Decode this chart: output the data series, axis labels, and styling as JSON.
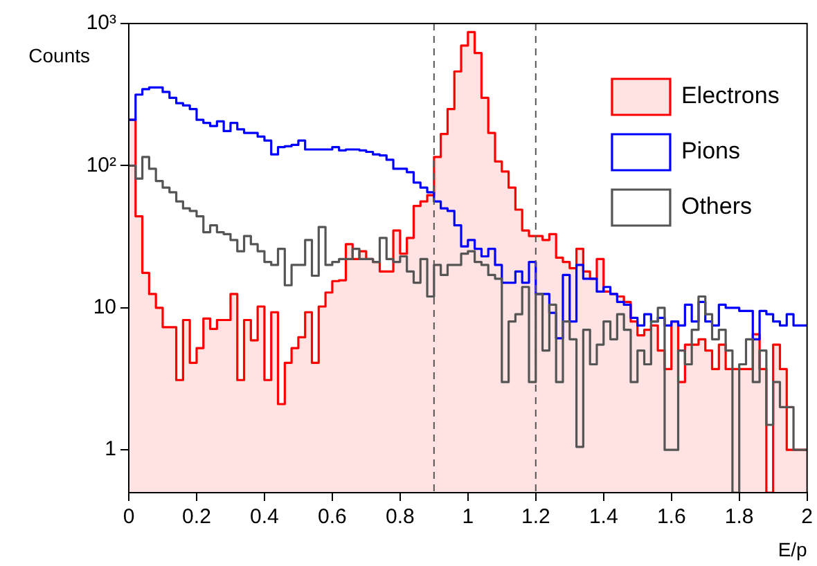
{
  "chart_data": {
    "type": "histogram",
    "xlabel": "E/p",
    "ylabel": "Counts",
    "bins": [
      0,
      0.02,
      0.04,
      0.06,
      0.08,
      0.1,
      0.12,
      0.14,
      0.16,
      0.18,
      0.2,
      0.22,
      0.24,
      0.26,
      0.28,
      0.3,
      0.32,
      0.34,
      0.36,
      0.38,
      0.4,
      0.42,
      0.44,
      0.46,
      0.48,
      0.5,
      0.52,
      0.54,
      0.56,
      0.58,
      0.6,
      0.62,
      0.64,
      0.66,
      0.68,
      0.7,
      0.72,
      0.74,
      0.76,
      0.78,
      0.8,
      0.82,
      0.84,
      0.86,
      0.88,
      0.9,
      0.92,
      0.94,
      0.96,
      0.98,
      1,
      1.02,
      1.04,
      1.06,
      1.08,
      1.1,
      1.12,
      1.14,
      1.16,
      1.18,
      1.2,
      1.22,
      1.24,
      1.26,
      1.28,
      1.3,
      1.32,
      1.34,
      1.36,
      1.38,
      1.4,
      1.42,
      1.44,
      1.46,
      1.48,
      1.5,
      1.52,
      1.54,
      1.56,
      1.58,
      1.6,
      1.62,
      1.64,
      1.66,
      1.68,
      1.7,
      1.72,
      1.74,
      1.76,
      1.78,
      1.8,
      1.82,
      1.84,
      1.86,
      1.88,
      1.9,
      1.92,
      1.94,
      1.96,
      1.98,
      2
    ],
    "series": [
      {
        "name": "Electrons",
        "type": "area",
        "color": "#ff0000",
        "x": [
          0.01,
          0.03,
          0.05,
          0.07,
          0.09,
          0.11,
          0.13,
          0.15,
          0.17,
          0.19,
          0.21,
          0.23,
          0.25,
          0.27,
          0.29,
          0.31,
          0.33,
          0.35,
          0.37,
          0.39,
          0.41,
          0.43,
          0.45,
          0.47,
          0.49,
          0.51,
          0.53,
          0.55,
          0.57,
          0.59,
          0.61,
          0.63,
          0.65,
          0.67,
          0.69,
          0.71,
          0.73,
          0.75,
          0.77,
          0.79,
          0.81,
          0.83,
          0.85,
          0.87,
          0.89,
          0.91,
          0.93,
          0.95,
          0.97,
          0.99,
          1.01,
          1.03,
          1.05,
          1.07,
          1.09,
          1.11,
          1.13,
          1.15,
          1.17,
          1.19,
          1.21,
          1.23,
          1.25,
          1.27,
          1.29,
          1.31,
          1.33,
          1.35,
          1.37,
          1.39,
          1.41,
          1.43,
          1.45,
          1.47,
          1.49,
          1.51,
          1.53,
          1.55,
          1.57,
          1.59,
          1.61,
          1.63,
          1.65,
          1.67,
          1.69,
          1.71,
          1.73,
          1.75,
          1.77,
          1.79,
          1.81,
          1.83,
          1.85,
          1.87,
          1.89,
          1.91,
          1.93,
          1.95,
          1.97,
          1.99
        ],
        "values": [
          210,
          44,
          17.6,
          12.5,
          10,
          7.3,
          7.3,
          3.1,
          8.2,
          4.1,
          5.2,
          8.4,
          7.1,
          8.2,
          8.2,
          12.5,
          3.1,
          8.2,
          5.9,
          10.2,
          3.1,
          9.3,
          2.1,
          4.1,
          5.2,
          6.2,
          9.3,
          4.1,
          10.2,
          12.8,
          15.4,
          15.6,
          28,
          22,
          25,
          22,
          21,
          18,
          18,
          35,
          24,
          31,
          52,
          56,
          62,
          115,
          167,
          250,
          460,
          700,
          870,
          620,
          300,
          170,
          107,
          91,
          70,
          49,
          35,
          32,
          32,
          30,
          33,
          22.5,
          21,
          19,
          26,
          18,
          16,
          22,
          13,
          12.5,
          12,
          11,
          8,
          6.4,
          7,
          7.5,
          5,
          3.7,
          8,
          3,
          5.5,
          5.5,
          6,
          5,
          3.7,
          5.5,
          3.7,
          3.7,
          3.7,
          3.7,
          6.5,
          3.7,
          0.5,
          5.5,
          3.7,
          1,
          1,
          1
        ]
      },
      {
        "name": "Pions",
        "type": "histogram",
        "color": "#0000ff",
        "values": [
          210,
          316,
          345,
          355,
          355,
          330,
          300,
          275,
          265,
          250,
          210,
          200,
          190,
          205,
          175,
          200,
          180,
          170,
          170,
          160,
          150,
          120,
          135,
          137,
          140,
          150,
          130,
          130,
          130,
          130,
          135,
          128,
          130,
          130,
          128,
          125,
          120,
          118,
          110,
          95,
          95,
          90,
          76,
          70,
          65,
          56,
          50,
          48,
          38,
          27,
          30,
          26,
          23,
          26,
          20,
          15,
          15,
          18,
          15,
          21,
          12.5,
          12.5,
          9.2,
          6.1,
          17,
          8,
          20,
          16,
          16,
          13,
          14,
          12.5,
          11,
          10.5,
          8.5,
          7.5,
          9,
          8,
          8.5,
          7.5,
          8,
          7.5,
          10.5,
          8,
          11,
          8,
          7.5,
          10.5,
          10,
          10,
          9.5,
          9.5,
          6,
          9.5,
          9,
          8,
          7.5,
          9,
          7.5,
          7.5
        ]
      },
      {
        "name": "Others",
        "type": "histogram",
        "color": "#555555",
        "values": [
          100,
          81,
          115,
          95,
          78,
          70,
          65,
          56,
          50,
          48,
          44,
          34,
          38,
          34,
          33,
          30,
          25,
          32,
          28,
          25,
          21,
          20,
          26,
          14.4,
          20,
          20,
          30,
          16.8,
          37,
          20,
          21,
          22,
          22,
          26,
          22,
          22,
          21,
          31,
          22,
          21,
          23,
          18,
          15,
          22,
          12,
          20,
          17,
          20,
          20,
          24,
          25,
          21,
          20,
          17,
          16,
          3,
          8,
          9,
          14,
          3,
          12.5,
          5,
          10.5,
          3,
          8,
          6,
          1.05,
          7,
          4,
          5.5,
          8,
          6,
          9,
          7,
          3,
          5,
          4,
          8,
          10,
          1,
          1,
          5,
          4,
          7,
          12,
          9,
          6,
          7,
          5,
          0.5,
          4,
          6,
          3,
          5,
          1.5,
          3,
          2,
          2,
          1,
          1
        ]
      }
    ],
    "xlim": [
      0,
      2
    ],
    "xticks": [
      0,
      0.2,
      0.4,
      0.6,
      0.8,
      1,
      1.2,
      1.4,
      1.6,
      1.8,
      2
    ],
    "ylim": [
      0.5,
      1000
    ],
    "yticks": [
      1,
      10,
      {
        "value": 100,
        "label": "10²"
      },
      {
        "value": 1000,
        "label": "10³"
      }
    ],
    "log": "y",
    "grid": false,
    "legend": "top right",
    "ref_lines": [
      {
        "axis": "x",
        "value": 0.9,
        "color": "#555555",
        "line_style": "dashed"
      },
      {
        "axis": "x",
        "value": 1.2,
        "color": "#555555",
        "line_style": "dashed"
      }
    ]
  }
}
